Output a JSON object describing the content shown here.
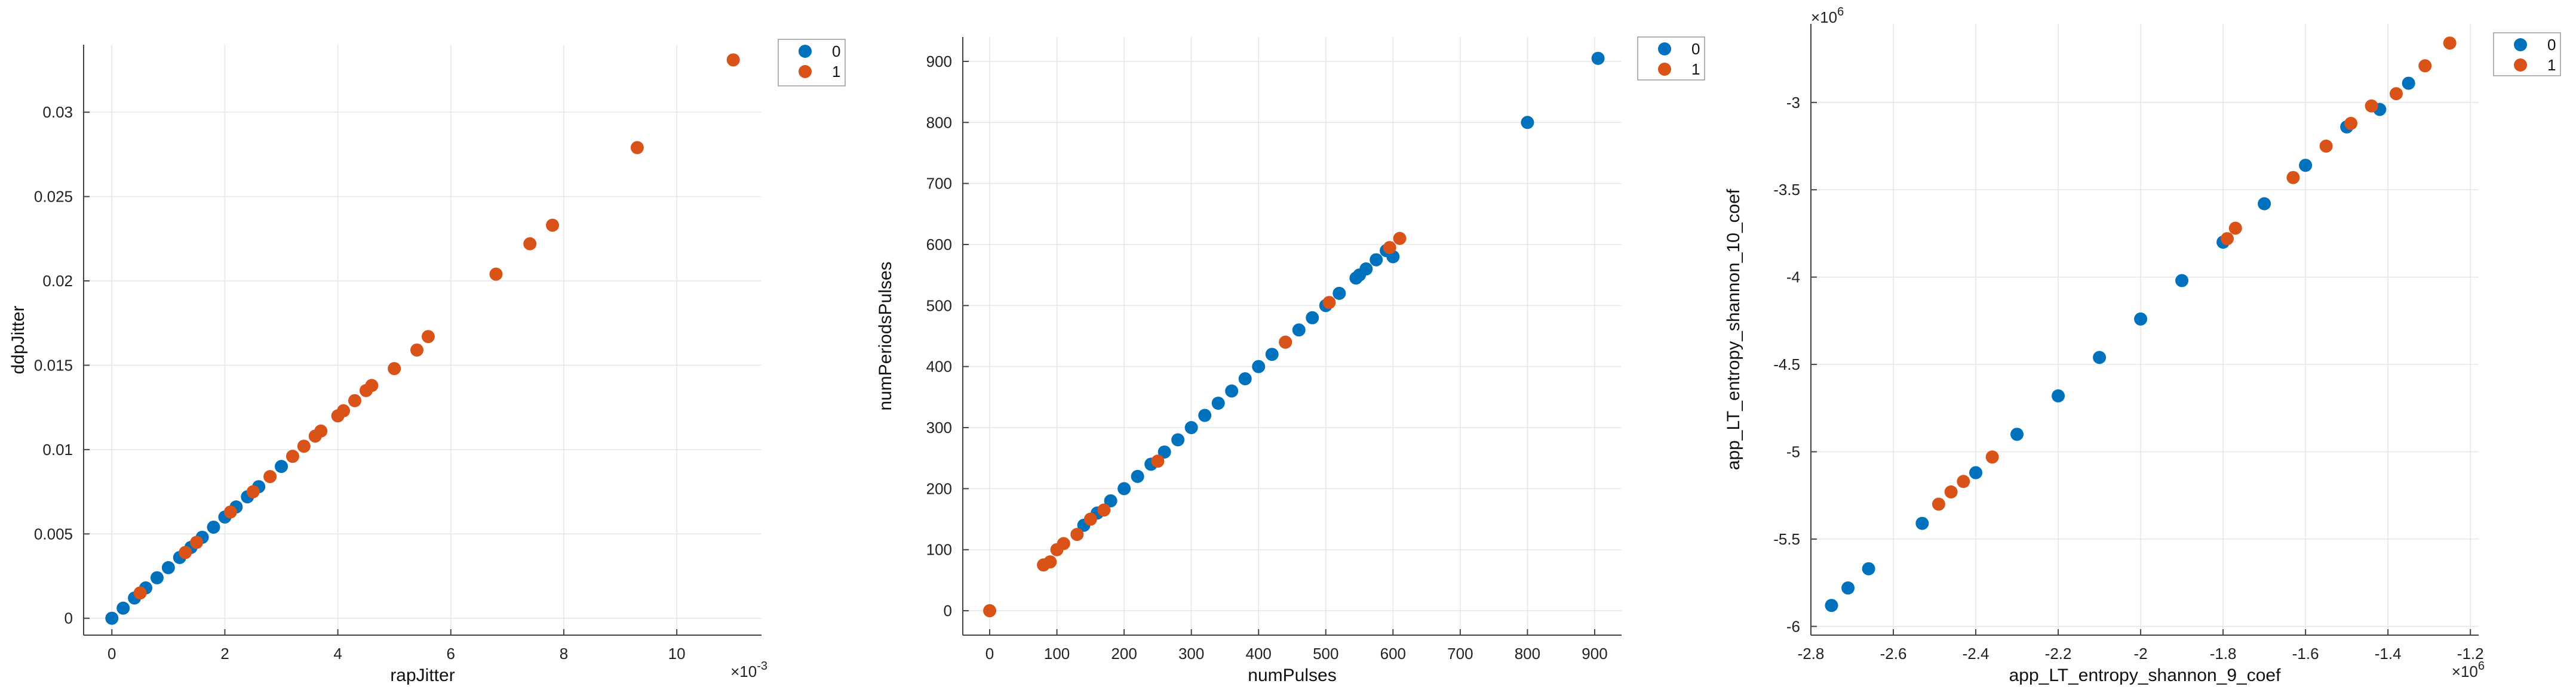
{
  "colors": {
    "class0": "#0072BD",
    "class1": "#D95319"
  },
  "chart_data": [
    {
      "type": "scatter",
      "xlabel": "rapJitter",
      "ylabel": "ddpJitter",
      "x_multiplier": "×10",
      "x_exponent": "-3",
      "xlim": [
        -0.5,
        11.5
      ],
      "ylim": [
        -0.001,
        0.034
      ],
      "xticks": [
        0,
        2,
        4,
        6,
        8,
        10
      ],
      "xtick_labels": [
        "0",
        "2",
        "4",
        "6",
        "8",
        "10"
      ],
      "yticks": [
        0,
        0.005,
        0.01,
        0.015,
        0.02,
        0.025,
        0.03
      ],
      "ytick_labels": [
        "0",
        "0.005",
        "0.01",
        "0.015",
        "0.02",
        "0.025",
        "0.03"
      ],
      "grid": true,
      "legend_position": "top-right-outside",
      "series": [
        {
          "name": "0",
          "points": [
            [
              0.0,
              0.0
            ],
            [
              0.2,
              0.0006
            ],
            [
              0.4,
              0.0012
            ],
            [
              0.6,
              0.0018
            ],
            [
              0.8,
              0.0024
            ],
            [
              1.0,
              0.003
            ],
            [
              1.2,
              0.0036
            ],
            [
              1.4,
              0.0042
            ],
            [
              1.6,
              0.0048
            ],
            [
              1.8,
              0.0054
            ],
            [
              2.0,
              0.006
            ],
            [
              2.2,
              0.0066
            ],
            [
              2.4,
              0.0072
            ],
            [
              2.6,
              0.0078
            ],
            [
              3.0,
              0.009
            ]
          ]
        },
        {
          "name": "1",
          "points": [
            [
              0.5,
              0.0015
            ],
            [
              1.3,
              0.0039
            ],
            [
              1.5,
              0.0045
            ],
            [
              2.1,
              0.0063
            ],
            [
              2.5,
              0.0075
            ],
            [
              2.8,
              0.0084
            ],
            [
              3.2,
              0.0096
            ],
            [
              3.4,
              0.0102
            ],
            [
              3.6,
              0.0108
            ],
            [
              3.7,
              0.0111
            ],
            [
              4.0,
              0.012
            ],
            [
              4.1,
              0.0123
            ],
            [
              4.3,
              0.0129
            ],
            [
              4.5,
              0.0135
            ],
            [
              4.6,
              0.0138
            ],
            [
              5.0,
              0.0148
            ],
            [
              5.4,
              0.0159
            ],
            [
              5.6,
              0.0167
            ],
            [
              6.8,
              0.0204
            ],
            [
              7.4,
              0.0222
            ],
            [
              7.8,
              0.0233
            ],
            [
              9.3,
              0.0279
            ],
            [
              11.0,
              0.0331
            ]
          ]
        }
      ]
    },
    {
      "type": "scatter",
      "xlabel": "numPulses",
      "ylabel": "numPeriodsPulses",
      "xlim": [
        -40,
        940
      ],
      "ylim": [
        -40,
        940
      ],
      "xticks": [
        0,
        100,
        200,
        300,
        400,
        500,
        600,
        700,
        800,
        900
      ],
      "xtick_labels": [
        "0",
        "100",
        "200",
        "300",
        "400",
        "500",
        "600",
        "700",
        "800",
        "900"
      ],
      "yticks": [
        0,
        100,
        200,
        300,
        400,
        500,
        600,
        700,
        800,
        900
      ],
      "ytick_labels": [
        "0",
        "100",
        "200",
        "300",
        "400",
        "500",
        "600",
        "700",
        "800",
        "900"
      ],
      "grid": true,
      "legend_position": "top-right-outside",
      "series": [
        {
          "name": "0",
          "points": [
            [
              140,
              140
            ],
            [
              160,
              160
            ],
            [
              180,
              180
            ],
            [
              200,
              200
            ],
            [
              220,
              220
            ],
            [
              240,
              240
            ],
            [
              260,
              260
            ],
            [
              280,
              280
            ],
            [
              300,
              300
            ],
            [
              320,
              320
            ],
            [
              340,
              340
            ],
            [
              360,
              360
            ],
            [
              380,
              380
            ],
            [
              400,
              400
            ],
            [
              420,
              420
            ],
            [
              440,
              440
            ],
            [
              460,
              460
            ],
            [
              480,
              480
            ],
            [
              500,
              500
            ],
            [
              520,
              520
            ],
            [
              545,
              545
            ],
            [
              550,
              550
            ],
            [
              560,
              560
            ],
            [
              575,
              575
            ],
            [
              590,
              590
            ],
            [
              600,
              580
            ],
            [
              800,
              800
            ],
            [
              905,
              905
            ]
          ]
        },
        {
          "name": "1",
          "points": [
            [
              0,
              0
            ],
            [
              80,
              75
            ],
            [
              90,
              80
            ],
            [
              100,
              100
            ],
            [
              110,
              110
            ],
            [
              130,
              125
            ],
            [
              150,
              150
            ],
            [
              170,
              165
            ],
            [
              250,
              245
            ],
            [
              440,
              440
            ],
            [
              505,
              505
            ],
            [
              595,
              595
            ],
            [
              610,
              610
            ]
          ]
        }
      ]
    },
    {
      "type": "scatter",
      "xlabel": "app_LT_entropy_shannon_9_coef",
      "ylabel": "app_LT_entropy_shannon_10_coef",
      "x_multiplier": "×10",
      "x_exponent": "6",
      "y_multiplier": "×10",
      "y_exponent": "6",
      "xlim": [
        -2.8,
        -1.18
      ],
      "ylim": [
        -6.05,
        -2.55
      ],
      "xticks": [
        -2.8,
        -2.6,
        -2.4,
        -2.2,
        -2.0,
        -1.8,
        -1.6,
        -1.4,
        -1.2
      ],
      "xtick_labels": [
        "-2.8",
        "-2.6",
        "-2.4",
        "-2.2",
        "-2",
        "-1.8",
        "-1.6",
        "-1.4",
        "-1.2"
      ],
      "yticks": [
        -6,
        -5.5,
        -5,
        -4.5,
        -4,
        -3.5,
        -3
      ],
      "ytick_labels": [
        "-6",
        "-5.5",
        "-5",
        "-4.5",
        "-4",
        "-3.5",
        "-3"
      ],
      "grid": true,
      "legend_position": "top-right-outside",
      "series": [
        {
          "name": "0",
          "points": [
            [
              -2.75,
              -5.88
            ],
            [
              -2.71,
              -5.78
            ],
            [
              -2.66,
              -5.67
            ],
            [
              -2.53,
              -5.41
            ],
            [
              -2.4,
              -5.12
            ],
            [
              -2.3,
              -4.9
            ],
            [
              -2.2,
              -4.68
            ],
            [
              -2.1,
              -4.46
            ],
            [
              -2.0,
              -4.24
            ],
            [
              -1.9,
              -4.02
            ],
            [
              -1.8,
              -3.8
            ],
            [
              -1.7,
              -3.58
            ],
            [
              -1.6,
              -3.36
            ],
            [
              -1.5,
              -3.14
            ],
            [
              -1.42,
              -3.04
            ],
            [
              -1.35,
              -2.89
            ]
          ]
        },
        {
          "name": "1",
          "points": [
            [
              -2.49,
              -5.3
            ],
            [
              -2.46,
              -5.23
            ],
            [
              -2.43,
              -5.17
            ],
            [
              -2.36,
              -5.03
            ],
            [
              -1.79,
              -3.78
            ],
            [
              -1.77,
              -3.72
            ],
            [
              -1.63,
              -3.43
            ],
            [
              -1.55,
              -3.25
            ],
            [
              -1.49,
              -3.12
            ],
            [
              -1.44,
              -3.02
            ],
            [
              -1.38,
              -2.95
            ],
            [
              -1.31,
              -2.79
            ],
            [
              -1.25,
              -2.66
            ]
          ]
        }
      ]
    }
  ]
}
